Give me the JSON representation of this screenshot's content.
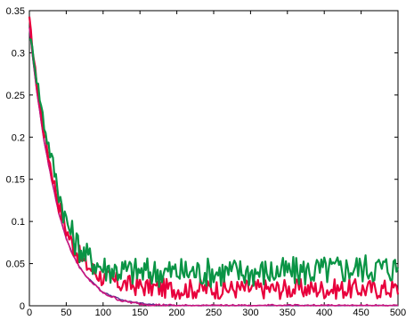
{
  "chart_data": {
    "type": "line",
    "title": "",
    "xlabel": "",
    "ylabel": "",
    "xlim": [
      0,
      500
    ],
    "ylim": [
      0,
      0.35
    ],
    "grid": false,
    "legend": "none",
    "x_ticks": [
      "0",
      "50",
      "100",
      "150",
      "200",
      "250",
      "300",
      "350",
      "400",
      "450",
      "500"
    ],
    "y_ticks": [
      "0",
      "0.05",
      "0.1",
      "0.15",
      "0.2",
      "0.25",
      "0.3",
      "0.35"
    ],
    "x": [
      0,
      5,
      10,
      20,
      30,
      40,
      50,
      60,
      75,
      100,
      125,
      150,
      175,
      200,
      250,
      300,
      350,
      400,
      450,
      500
    ],
    "series": [
      {
        "color": "#e8003c",
        "values": [
          0.34,
          0.3,
          0.265,
          0.205,
          0.16,
          0.12,
          0.09,
          0.07,
          0.05,
          0.033,
          0.026,
          0.023,
          0.021,
          0.02,
          0.02,
          0.02,
          0.02,
          0.02,
          0.02,
          0.02
        ]
      },
      {
        "color": "#0a9445",
        "values": [
          0.32,
          0.3,
          0.27,
          0.215,
          0.175,
          0.135,
          0.1,
          0.08,
          0.06,
          0.045,
          0.042,
          0.04,
          0.04,
          0.04,
          0.04,
          0.04,
          0.04,
          0.042,
          0.045,
          0.045
        ]
      },
      {
        "color": "#c8157f",
        "values": [
          0.33,
          0.29,
          0.255,
          0.195,
          0.15,
          0.11,
          0.08,
          0.058,
          0.036,
          0.015,
          0.006,
          0.002,
          0.001,
          0.0,
          0.0,
          0.0,
          0.0,
          0.0,
          0.0,
          0.0
        ]
      },
      {
        "color": "#5a2a8a",
        "values": [
          0.33,
          0.29,
          0.255,
          0.195,
          0.15,
          0.11,
          0.08,
          0.058,
          0.037,
          0.016,
          0.007,
          0.003,
          0.001,
          0.0,
          0.0,
          0.0,
          0.0,
          0.0,
          0.0,
          0.0
        ]
      }
    ]
  }
}
